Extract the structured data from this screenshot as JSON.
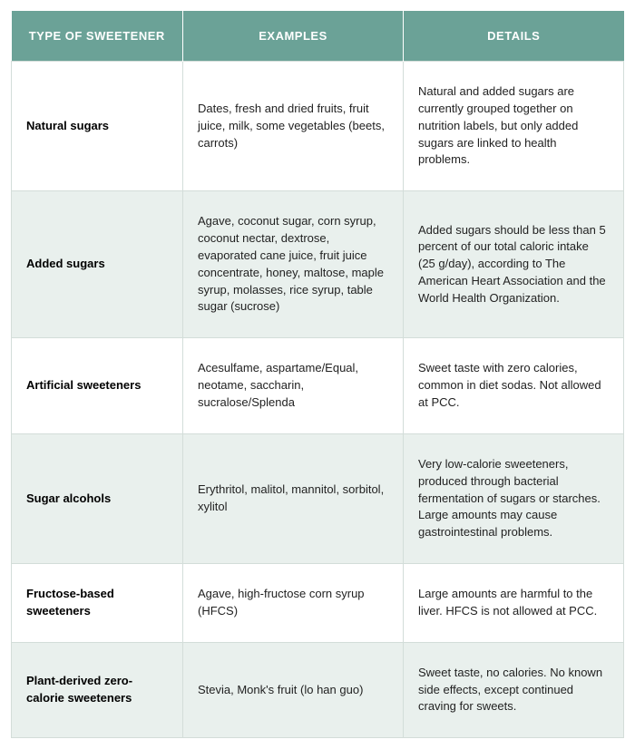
{
  "table": {
    "columns": [
      "TYPE OF SWEETENER",
      "EXAMPLES",
      "DETAILS"
    ],
    "header_bg": "#6ba297",
    "header_text_color": "#ffffff",
    "border_color": "#d3ddd9",
    "alt_row_bg": "#e9f0ed",
    "rows": [
      {
        "type": "Natural sugars",
        "examples": "Dates, fresh and dried fruits, fruit juice, milk, some vegetables (beets, carrots)",
        "details": "Natural and added sugars are currently grouped together on nutrition labels, but only added sugars are linked to health problems.",
        "alt": false
      },
      {
        "type": "Added sugars",
        "examples": "Agave, coconut sugar, corn syrup, coconut nectar, dextrose, evaporated cane juice, fruit juice concentrate, honey, maltose, maple syrup, molasses, rice syrup, table sugar (sucrose)",
        "details": "Added sugars should be less than 5 percent of our total caloric intake (25 g/day), according to The American Heart Association and the World Health Organization.",
        "alt": true
      },
      {
        "type": "Artificial sweeteners",
        "examples": "Acesulfame, aspartame/Equal, neotame, saccharin, sucralose/Splenda",
        "details": "Sweet taste with zero calories, common in diet sodas. Not allowed at PCC.",
        "alt": false
      },
      {
        "type": "Sugar alcohols",
        "examples": "Erythritol, malitol, mannitol, sorbitol, xylitol",
        "details": "Very low-calorie sweeteners, produced through bacterial fermentation of sugars or starches.  Large amounts may cause gastrointestinal problems.",
        "alt": true
      },
      {
        "type": "Fructose-based sweeteners",
        "examples": "Agave, high-fructose corn syrup (HFCS)",
        "details": "Large amounts are  harmful to the liver.  HFCS is not allowed at PCC.",
        "alt": false
      },
      {
        "type": "Plant-derived zero-calorie sweeteners",
        "examples": "Stevia, Monk's fruit (lo han guo)",
        "details": "Sweet taste, no calories. No known side effects, except continued craving for sweets.",
        "alt": true
      }
    ]
  }
}
